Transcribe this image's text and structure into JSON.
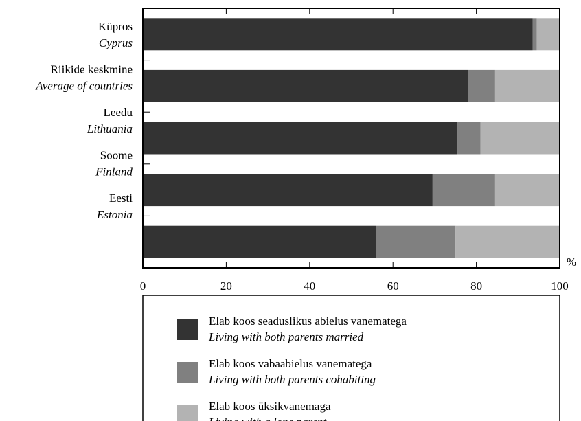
{
  "chart_data": {
    "type": "stacked-bar-horizontal",
    "categories": [
      "Küpros",
      "Riikide keskmine",
      "Leedu",
      "Soome",
      "Eesti"
    ],
    "categories_en": [
      "Cyprus",
      "Average of countries",
      "Lithuania",
      "Finland",
      "Estonia"
    ],
    "series": [
      {
        "name": "Elab koos seaduslikus abielus vanematega",
        "name_en": "Living with both parents married",
        "color": "#333333",
        "values": [
          93.5,
          78,
          75.5,
          69.5,
          56
        ]
      },
      {
        "name": "Elab koos vabaabielus vanematega",
        "name_en": "Living with both parents cohabiting",
        "color": "#808080",
        "values": [
          1,
          6.5,
          5.5,
          15,
          19
        ]
      },
      {
        "name": "Elab koos üksikvanemaga",
        "name_en": "Living with a lone parent",
        "color": "#b3b3b3",
        "values": [
          5.5,
          15.5,
          19,
          15.5,
          25
        ]
      }
    ],
    "xlabel": "%",
    "xlim": [
      0,
      100
    ],
    "xticks": [
      0,
      20,
      40,
      60,
      80,
      100
    ]
  }
}
